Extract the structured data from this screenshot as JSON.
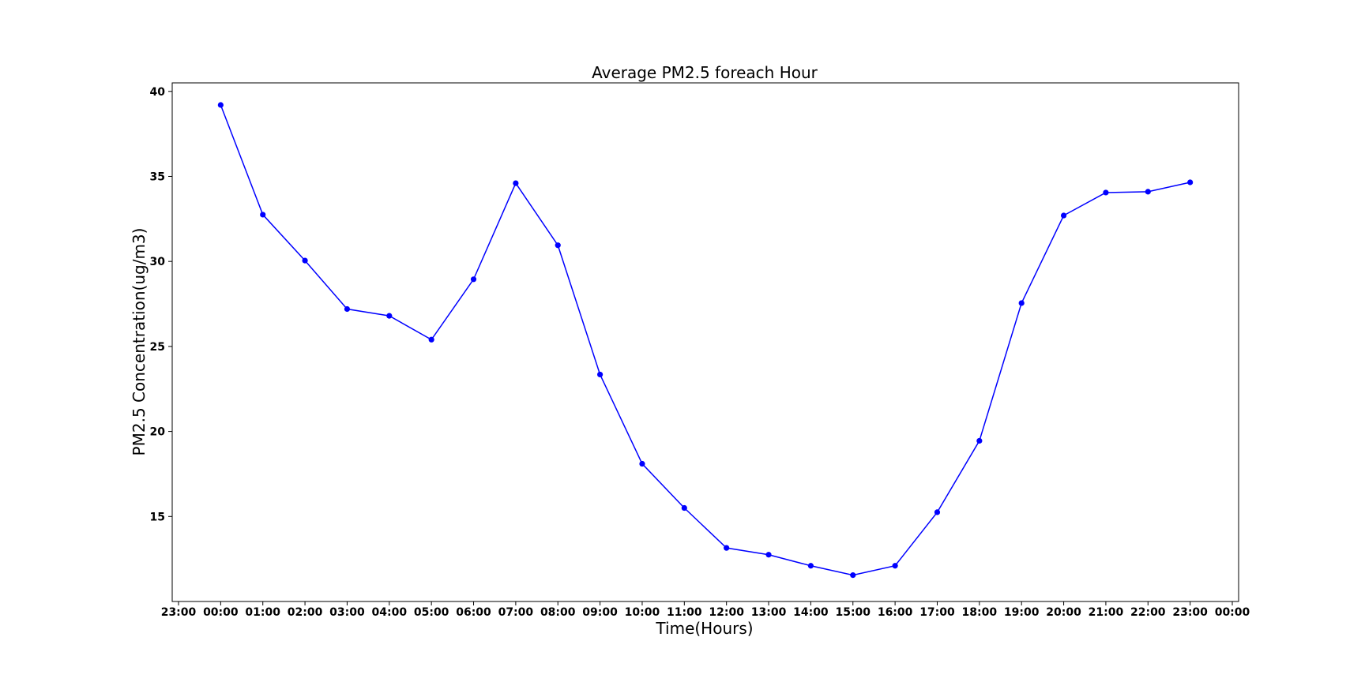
{
  "chart_data": {
    "type": "line",
    "title": "Average PM2.5 foreach Hour",
    "xlabel": "Time(Hours)",
    "ylabel": "PM2.5 Concentration(ug/m3)",
    "x_tick_labels": [
      "23:00",
      "00:00",
      "01:00",
      "02:00",
      "03:00",
      "04:00",
      "05:00",
      "06:00",
      "07:00",
      "08:00",
      "09:00",
      "10:00",
      "11:00",
      "12:00",
      "13:00",
      "14:00",
      "15:00",
      "16:00",
      "17:00",
      "18:00",
      "19:00",
      "20:00",
      "21:00",
      "22:00",
      "23:00",
      "00:00"
    ],
    "x_tick_hours": [
      -1,
      0,
      1,
      2,
      3,
      4,
      5,
      6,
      7,
      8,
      9,
      10,
      11,
      12,
      13,
      14,
      15,
      16,
      17,
      18,
      19,
      20,
      21,
      22,
      23,
      24
    ],
    "y_ticks": [
      15,
      20,
      25,
      30,
      35,
      40
    ],
    "xlim": [
      -1.15,
      24.15
    ],
    "ylim": [
      10.0,
      40.5
    ],
    "grid": false,
    "legend": "none",
    "series": [
      {
        "color": "#0000ff",
        "marker": "circle",
        "x": [
          "00:00",
          "01:00",
          "02:00",
          "03:00",
          "04:00",
          "05:00",
          "06:00",
          "07:00",
          "08:00",
          "09:00",
          "10:00",
          "11:00",
          "12:00",
          "13:00",
          "14:00",
          "15:00",
          "16:00",
          "17:00",
          "18:00",
          "19:00",
          "20:00",
          "21:00",
          "22:00",
          "23:00"
        ],
        "x_hours": [
          0,
          1,
          2,
          3,
          4,
          5,
          6,
          7,
          8,
          9,
          10,
          11,
          12,
          13,
          14,
          15,
          16,
          17,
          18,
          19,
          20,
          21,
          22,
          23
        ],
        "values": [
          39.2,
          32.75,
          30.05,
          27.2,
          26.8,
          25.4,
          28.95,
          34.6,
          30.95,
          23.35,
          18.1,
          15.5,
          13.15,
          12.75,
          12.1,
          11.55,
          12.1,
          15.25,
          19.45,
          27.55,
          32.7,
          34.05,
          34.1,
          34.65
        ]
      }
    ]
  }
}
